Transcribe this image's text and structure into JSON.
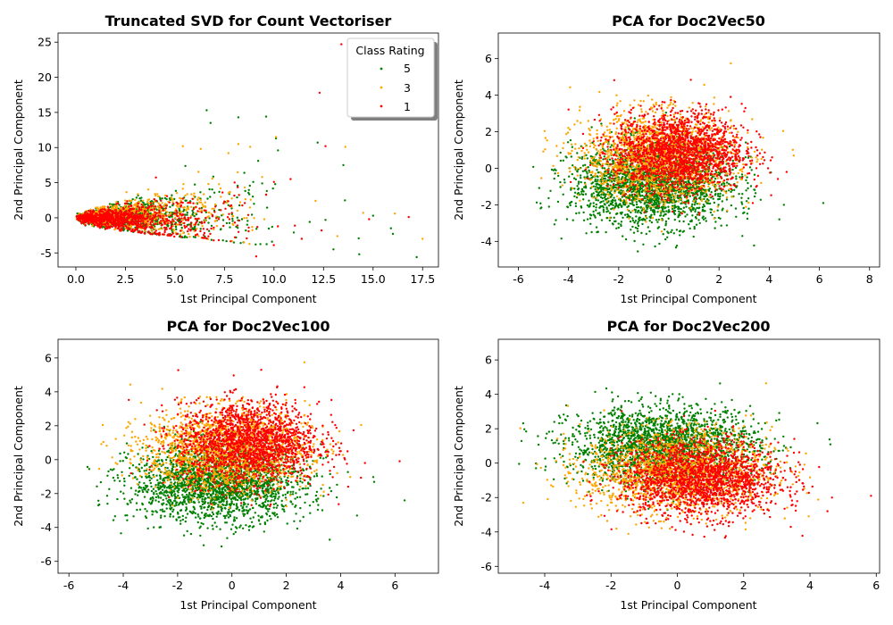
{
  "legend": {
    "title": "Class Rating",
    "placement": "top-right of first subplot",
    "entries": [
      {
        "label": "5",
        "color": "#008000"
      },
      {
        "label": "3",
        "color": "#FFA500"
      },
      {
        "label": "1",
        "color": "#FF0000"
      }
    ]
  },
  "chart_data": [
    {
      "type": "scatter",
      "title": "Truncated SVD for Count Vectoriser",
      "xlabel": "1st Principal Component",
      "ylabel": "2nd Principal Component",
      "xlim": [
        -0.9,
        18.3
      ],
      "ylim": [
        -7.0,
        26.3
      ],
      "xticks": [
        "0.0",
        "2.5",
        "5.0",
        "7.5",
        "10.0",
        "12.5",
        "15.0",
        "17.5"
      ],
      "xtick_values": [
        0,
        2.5,
        5,
        7.5,
        10,
        12.5,
        15,
        17.5
      ],
      "yticks": [
        "-5",
        "0",
        "5",
        "10",
        "15",
        "20",
        "25"
      ],
      "ytick_values": [
        -5,
        0,
        5,
        10,
        15,
        20,
        25
      ],
      "series": [
        {
          "name": "5",
          "color": "#008000",
          "points": [
            [
              6.6,
              15.3
            ],
            [
              8.2,
              14.3
            ],
            [
              9.6,
              14.4
            ],
            [
              12.2,
              10.7
            ],
            [
              10.1,
              11.3
            ],
            [
              6.8,
              13.5
            ],
            [
              15.0,
              0.3
            ],
            [
              15.9,
              -1.5
            ],
            [
              17.2,
              -5.6
            ],
            [
              14.3,
              -5.2
            ],
            [
              13.0,
              -4.5
            ],
            [
              11.8,
              -0.6
            ],
            [
              12.6,
              -0.3
            ],
            [
              16.0,
              -2.3
            ],
            [
              13.5,
              7.5
            ],
            [
              10.2,
              9.6
            ],
            [
              9.2,
              8.1
            ],
            [
              8.5,
              6.4
            ],
            [
              11.0,
              -2.1
            ],
            [
              9.9,
              -3.4
            ],
            [
              7.7,
              1.8
            ]
          ]
        },
        {
          "name": "3",
          "color": "#FFA500",
          "points": [
            [
              17.5,
              -3.0
            ],
            [
              16.1,
              0.6
            ],
            [
              13.6,
              10.1
            ],
            [
              10.1,
              11.5
            ],
            [
              7.7,
              9.2
            ],
            [
              6.3,
              9.8
            ],
            [
              5.4,
              10.2
            ],
            [
              14.5,
              0.7
            ],
            [
              12.1,
              2.4
            ],
            [
              9.4,
              5.8
            ],
            [
              13.2,
              -2.6
            ],
            [
              8.9,
              -1.3
            ],
            [
              8.2,
              10.5
            ]
          ]
        },
        {
          "name": "1",
          "color": "#FF0000",
          "points": [
            [
              13.4,
              24.7
            ],
            [
              12.3,
              17.8
            ],
            [
              12.6,
              10.2
            ],
            [
              16.8,
              0.1
            ],
            [
              9.1,
              -5.5
            ],
            [
              11.4,
              -3.0
            ],
            [
              10.0,
              5.1
            ],
            [
              8.7,
              0.4
            ],
            [
              14.8,
              -0.2
            ],
            [
              7.4,
              3.6
            ],
            [
              12.4,
              -1.8
            ],
            [
              9.6,
              3.3
            ]
          ]
        }
      ],
      "bulk": {
        "shape": "fan",
        "note_points_per_class": 1000
      }
    },
    {
      "type": "scatter",
      "title": "PCA for Doc2Vec50",
      "xlabel": "1st Principal Component",
      "ylabel": "2nd Principal Component",
      "xlim": [
        -6.8,
        8.4
      ],
      "ylim": [
        -5.4,
        7.4
      ],
      "xticks": [
        "-6",
        "-4",
        "-2",
        "0",
        "2",
        "4",
        "6",
        "8"
      ],
      "xtick_values": [
        -6,
        -4,
        -2,
        0,
        2,
        4,
        6,
        8
      ],
      "yticks": [
        "-4",
        "-2",
        "0",
        "2",
        "4",
        "6"
      ],
      "ytick_values": [
        -4,
        -2,
        0,
        2,
        4,
        6
      ],
      "series": [
        {
          "name": "5",
          "center": [
            -0.7,
            -0.9
          ],
          "spread": [
            1.6,
            1.1
          ],
          "color": "#008000"
        },
        {
          "name": "3",
          "center": [
            -0.4,
            0.6
          ],
          "spread": [
            1.5,
            1.2
          ],
          "color": "#FFA500"
        },
        {
          "name": "1",
          "center": [
            0.4,
            0.9
          ],
          "spread": [
            1.3,
            1.1
          ],
          "color": "#FF0000"
        }
      ]
    },
    {
      "type": "scatter",
      "title": "PCA for Doc2Vec100",
      "xlabel": "1st Principal Component",
      "ylabel": "2nd Principal Component",
      "xlim": [
        -6.4,
        7.6
      ],
      "ylim": [
        -6.7,
        7.1
      ],
      "xticks": [
        "-6",
        "-4",
        "-2",
        "0",
        "2",
        "4",
        "6"
      ],
      "xtick_values": [
        -6,
        -4,
        -2,
        0,
        2,
        4,
        6
      ],
      "yticks": [
        "-6",
        "-4",
        "-2",
        "0",
        "2",
        "4",
        "6"
      ],
      "ytick_values": [
        -6,
        -4,
        -2,
        0,
        2,
        4,
        6
      ],
      "series": [
        {
          "name": "5",
          "center": [
            -0.5,
            -1.4
          ],
          "spread": [
            1.6,
            1.1
          ],
          "color": "#008000"
        },
        {
          "name": "3",
          "center": [
            -0.2,
            0.6
          ],
          "spread": [
            1.5,
            1.2
          ],
          "color": "#FFA500"
        },
        {
          "name": "1",
          "center": [
            0.6,
            1.0
          ],
          "spread": [
            1.3,
            1.2
          ],
          "color": "#FF0000"
        }
      ]
    },
    {
      "type": "scatter",
      "title": "PCA for Doc2Vec200",
      "xlabel": "1st Principal Component",
      "ylabel": "2nd Principal Component",
      "xlim": [
        -5.4,
        6.1
      ],
      "ylim": [
        -6.4,
        7.2
      ],
      "xticks": [
        "-4",
        "-2",
        "0",
        "2",
        "4",
        "6"
      ],
      "xtick_values": [
        -4,
        -2,
        0,
        2,
        4,
        6
      ],
      "yticks": [
        "-6",
        "-4",
        "-2",
        "0",
        "2",
        "4",
        "6"
      ],
      "ytick_values": [
        -6,
        -4,
        -2,
        0,
        2,
        4,
        6
      ],
      "series": [
        {
          "name": "5",
          "center": [
            -0.4,
            1.0
          ],
          "spread": [
            1.4,
            1.1
          ],
          "color": "#008000"
        },
        {
          "name": "3",
          "center": [
            0.0,
            -0.5
          ],
          "spread": [
            1.4,
            1.2
          ],
          "color": "#FFA500"
        },
        {
          "name": "1",
          "center": [
            0.7,
            -0.9
          ],
          "spread": [
            1.2,
            1.1
          ],
          "color": "#FF0000"
        }
      ]
    }
  ]
}
